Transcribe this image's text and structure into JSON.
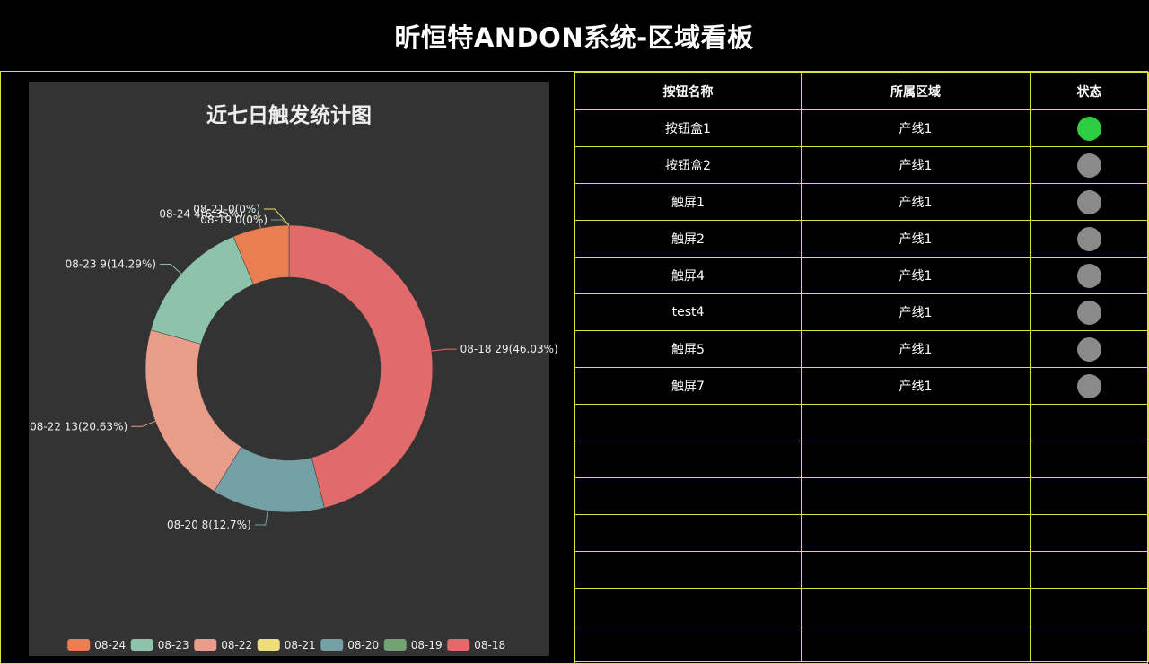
{
  "header": {
    "title": "昕恒特ANDON系统-区域看板"
  },
  "table": {
    "columns": [
      "按钮名称",
      "所属区域",
      "状态"
    ],
    "rows": [
      {
        "name": "按钮盒1",
        "area": "产线1",
        "status_color": "#2ecc40"
      },
      {
        "name": "按钮盒2",
        "area": "产线1",
        "status_color": "#8a8a8a"
      },
      {
        "name": "触屏1",
        "area": "产线1",
        "status_color": "#8a8a8a"
      },
      {
        "name": "触屏2",
        "area": "产线1",
        "status_color": "#8a8a8a"
      },
      {
        "name": "触屏4",
        "area": "产线1",
        "status_color": "#8a8a8a"
      },
      {
        "name": "test4",
        "area": "产线1",
        "status_color": "#8a8a8a"
      },
      {
        "name": "触屏5",
        "area": "产线1",
        "status_color": "#8a8a8a"
      },
      {
        "name": "触屏7",
        "area": "产线1",
        "status_color": "#8a8a8a"
      }
    ],
    "empty_rows": 7
  },
  "chart_data": {
    "type": "pie",
    "title": "近七日触发统计图",
    "slices": [
      {
        "name": "08-18",
        "value": 29,
        "label": "08-18 29(46.03%)",
        "color": "#e06b6a"
      },
      {
        "name": "08-20",
        "value": 8,
        "label": "08-20 8(12.7%)",
        "color": "#74a0a6"
      },
      {
        "name": "08-22",
        "value": 13,
        "label": "08-22 13(20.63%)",
        "color": "#e79d8a"
      },
      {
        "name": "08-23",
        "value": 9,
        "label": "08-23 9(14.29%)",
        "color": "#8ec3ab"
      },
      {
        "name": "08-24",
        "value": 4,
        "label": "08-24 4(6.35%)",
        "color": "#ea7e53"
      },
      {
        "name": "08-19",
        "value": 0,
        "label": "08-19 0(0%)",
        "color": "#73a373"
      },
      {
        "name": "08-21",
        "value": 0,
        "label": "08-21 0(0%)",
        "color": "#eedd78"
      }
    ],
    "legend": [
      "08-24",
      "08-23",
      "08-22",
      "08-21",
      "08-20",
      "08-19",
      "08-18"
    ],
    "legend_position": "bottom",
    "donut": true
  }
}
